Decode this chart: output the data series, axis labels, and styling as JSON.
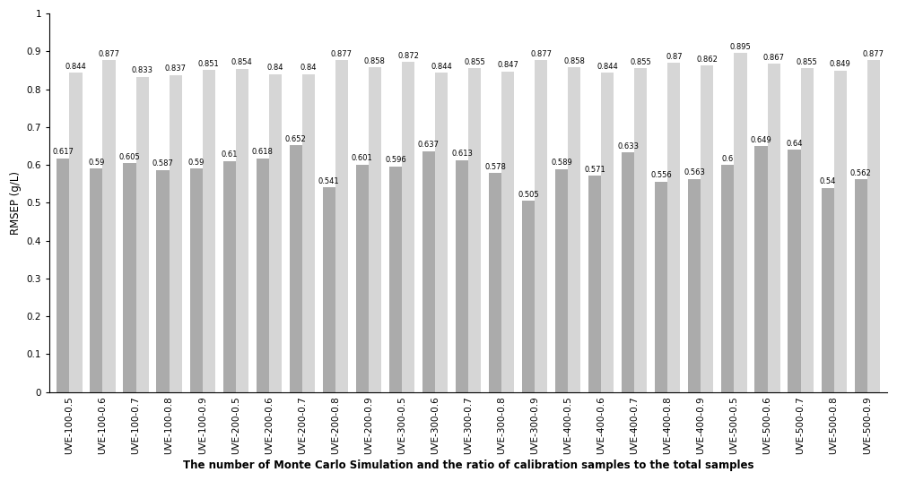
{
  "categories": [
    "UVE-100-0.5",
    "UVE-100-0.6",
    "UVE-100-0.7",
    "UVE-100-0.8",
    "UVE-100-0.9",
    "UVE-200-0.5",
    "UVE-200-0.6",
    "UVE-200-0.7",
    "UVE-200-0.8",
    "UVE-200-0.9",
    "UVE-300-0.5",
    "UVE-300-0.6",
    "UVE-300-0.7",
    "UVE-300-0.8",
    "UVE-300-0.9",
    "UVE-400-0.5",
    "UVE-400-0.6",
    "UVE-400-0.7",
    "UVE-400-0.8",
    "UVE-400-0.9",
    "UVE-500-0.5",
    "UVE-500-0.6",
    "UVE-500-0.7",
    "UVE-500-0.8",
    "UVE-500-0.9"
  ],
  "rmsep_values": [
    0.617,
    0.59,
    0.605,
    0.587,
    0.59,
    0.61,
    0.618,
    0.652,
    0.541,
    0.601,
    0.596,
    0.637,
    0.613,
    0.578,
    0.505,
    0.589,
    0.571,
    0.633,
    0.556,
    0.563,
    0.6,
    0.649,
    0.64,
    0.54,
    0.562
  ],
  "r2_values": [
    0.844,
    0.877,
    0.833,
    0.837,
    0.851,
    0.854,
    0.84,
    0.84,
    0.877,
    0.858,
    0.872,
    0.844,
    0.855,
    0.847,
    0.877,
    0.858,
    0.844,
    0.855,
    0.87,
    0.862,
    0.895,
    0.867,
    0.855,
    0.849,
    0.877
  ],
  "rmsep_color": "#ababab",
  "r2_color": "#d6d6d6",
  "ylabel": "RMSEP (g/L)",
  "xlabel": "The number of Monte Carlo Simulation and the ratio of calibration samples to the total samples",
  "ylim": [
    0,
    1.0
  ],
  "yticks": [
    0,
    0.1,
    0.2,
    0.3,
    0.4,
    0.5,
    0.6,
    0.7,
    0.8,
    0.9,
    1
  ],
  "bar_width": 0.38,
  "fontsize_axis_label": 8.5,
  "fontsize_ticks": 7.5,
  "fontsize_bar_label": 6.0
}
